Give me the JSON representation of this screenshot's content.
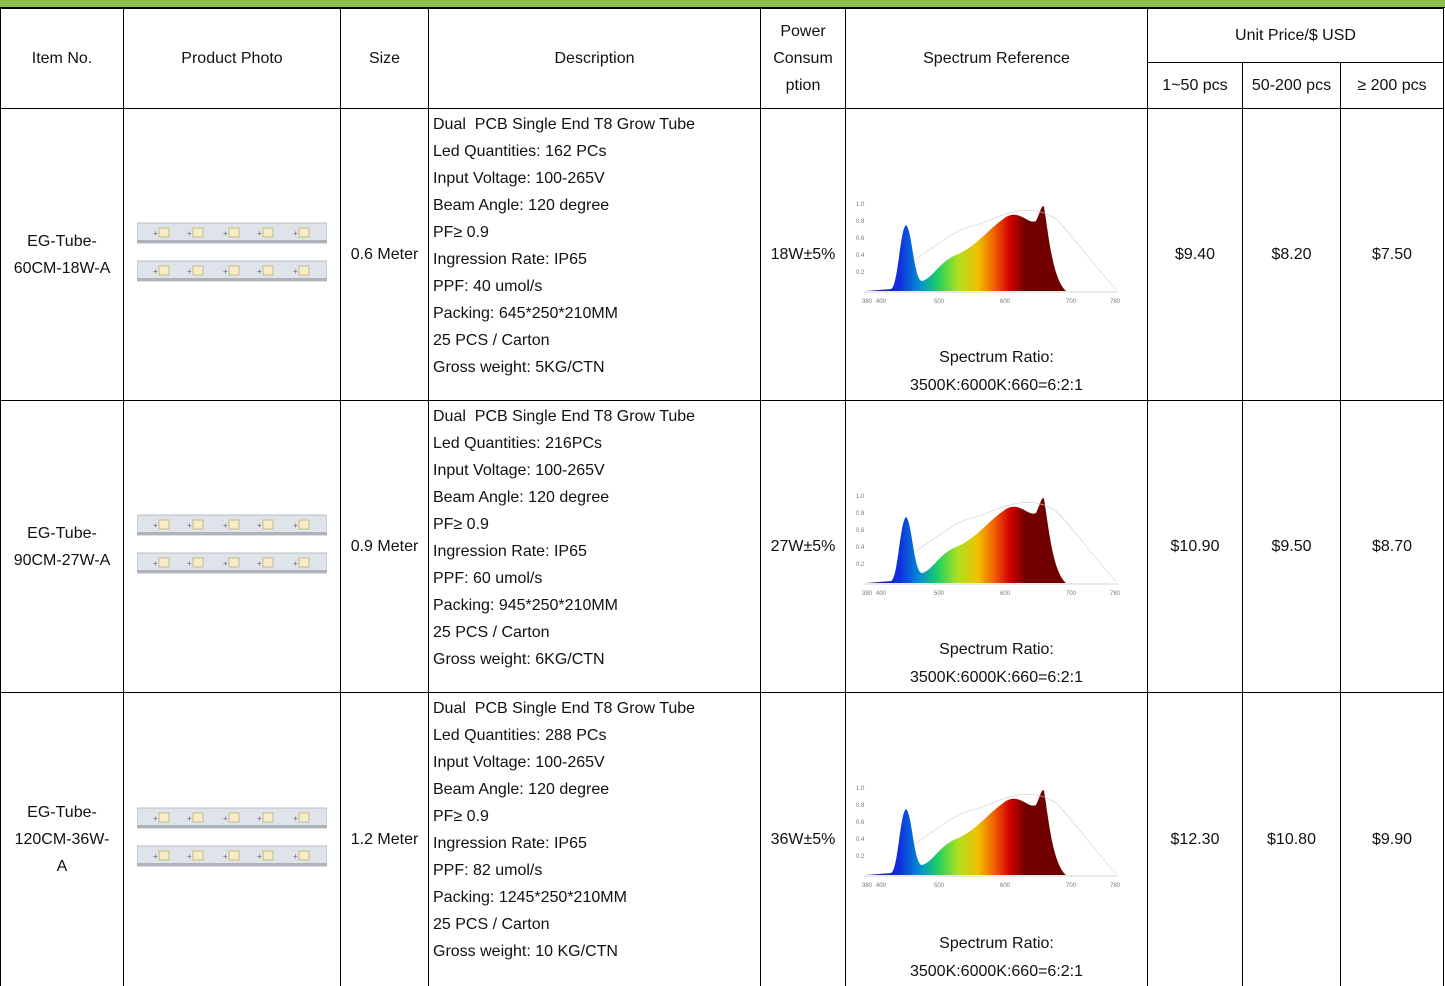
{
  "header": {
    "item_no": "Item No.",
    "product_photo": "Product Photo",
    "size": "Size",
    "description": "Description",
    "power": [
      "Power",
      "Consum",
      "ption"
    ],
    "spectrum": "Spectrum Reference",
    "unit_price": "Unit Price/$ USD",
    "price_tiers": [
      "1~50 pcs",
      "50-200 pcs",
      "≥ 200 pcs"
    ]
  },
  "spectrum_axis": {
    "x": [
      "380",
      "400",
      "500",
      "600",
      "700",
      "780"
    ],
    "y": [
      "1.0",
      "0.8",
      "0.6",
      "0.4",
      "0.2"
    ]
  },
  "rows": [
    {
      "item_no": "EG-Tube-60CM-18W-A",
      "size": "0.6 Meter",
      "description": [
        "Dual  PCB Single End T8 Grow Tube",
        "Led Quantities: 162 PCs",
        "Input Voltage: 100-265V",
        "Beam Angle: 120 degree",
        "PF≥ 0.9",
        "Ingression Rate: IP65",
        "PPF: 40 umol/s",
        "Packing: 645*250*210MM",
        "25 PCS / Carton",
        "Gross weight: 5KG/CTN"
      ],
      "power": "18W±5%",
      "spectrum_ratio": [
        "Spectrum Ratio:",
        "3500K:6000K:660=6:2:1"
      ],
      "prices": [
        "$9.40",
        "$8.20",
        "$7.50"
      ]
    },
    {
      "item_no": "EG-Tube-90CM-27W-A",
      "size": "0.9 Meter",
      "description": [
        "Dual  PCB Single End T8 Grow Tube",
        "Led Quantities: 216PCs",
        "Input Voltage: 100-265V",
        "Beam Angle: 120 degree",
        "PF≥ 0.9",
        "Ingression Rate: IP65",
        "PPF: 60 umol/s",
        "Packing: 945*250*210MM",
        "25 PCS / Carton",
        "Gross weight: 6KG/CTN"
      ],
      "power": "27W±5%",
      "spectrum_ratio": [
        "Spectrum Ratio:",
        "3500K:6000K:660=6:2:1"
      ],
      "prices": [
        "$10.90",
        "$9.50",
        "$8.70"
      ]
    },
    {
      "item_no": "EG-Tube-120CM-36W-A",
      "size": "1.2 Meter",
      "description": [
        "Dual  PCB Single End T8 Grow Tube",
        "Led Quantities: 288 PCs",
        "Input Voltage: 100-265V",
        "Beam Angle: 120 degree",
        "PF≥ 0.9",
        "Ingression Rate: IP65",
        "PPF: 82 umol/s",
        "Packing: 1245*250*210MM",
        "25 PCS / Carton",
        "Gross weight: 10 KG/CTN"
      ],
      "power": "36W±5%",
      "spectrum_ratio": [
        "Spectrum Ratio:",
        "3500K:6000K:660=6:2:1"
      ],
      "prices": [
        "$12.30",
        "$10.80",
        "$9.90"
      ]
    }
  ]
}
